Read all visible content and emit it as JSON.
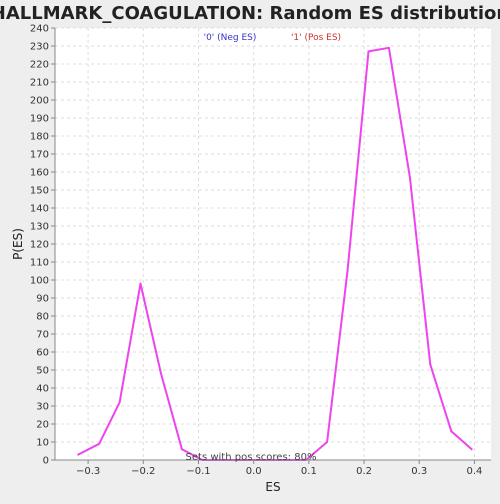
{
  "chart_data": {
    "type": "line",
    "title": "HALLMARK_COAGULATION: Random ES distribution",
    "xlabel": "ES",
    "ylabel": "P(ES)",
    "xlim": [
      -0.36,
      0.43
    ],
    "ylim": [
      0,
      240
    ],
    "x_ticks": [
      -0.3,
      -0.2,
      -0.1,
      0.0,
      0.1,
      0.2,
      0.3,
      0.4
    ],
    "x_tick_labels": [
      "−0.3",
      "−0.2",
      "−0.1",
      "0.0",
      "0.1",
      "0.2",
      "0.3",
      "0.4"
    ],
    "y_ticks": [
      0,
      10,
      20,
      30,
      40,
      50,
      60,
      70,
      80,
      90,
      100,
      110,
      120,
      130,
      140,
      150,
      160,
      170,
      180,
      190,
      200,
      210,
      220,
      230,
      240
    ],
    "grid": true,
    "legend": [
      {
        "label": "'0' (Neg ES)",
        "color": "#3333cc"
      },
      {
        "label": "'1' (Pos ES)",
        "color": "#cc3333"
      }
    ],
    "annotation": "Sets with pos scores: 80%",
    "series": [
      {
        "color": "#ee44ee",
        "x": [
          -0.318,
          -0.28,
          -0.243,
          -0.205,
          -0.168,
          -0.13,
          -0.093,
          -0.055,
          -0.018,
          0.02,
          0.057,
          0.095,
          0.133,
          0.17,
          0.208,
          0.245,
          0.283,
          0.32,
          0.358,
          0.395
        ],
        "y": [
          3,
          9,
          32,
          98,
          48,
          6,
          0,
          0,
          0,
          0,
          0,
          0,
          10,
          105,
          227,
          229,
          157,
          53,
          16,
          6
        ]
      }
    ]
  }
}
